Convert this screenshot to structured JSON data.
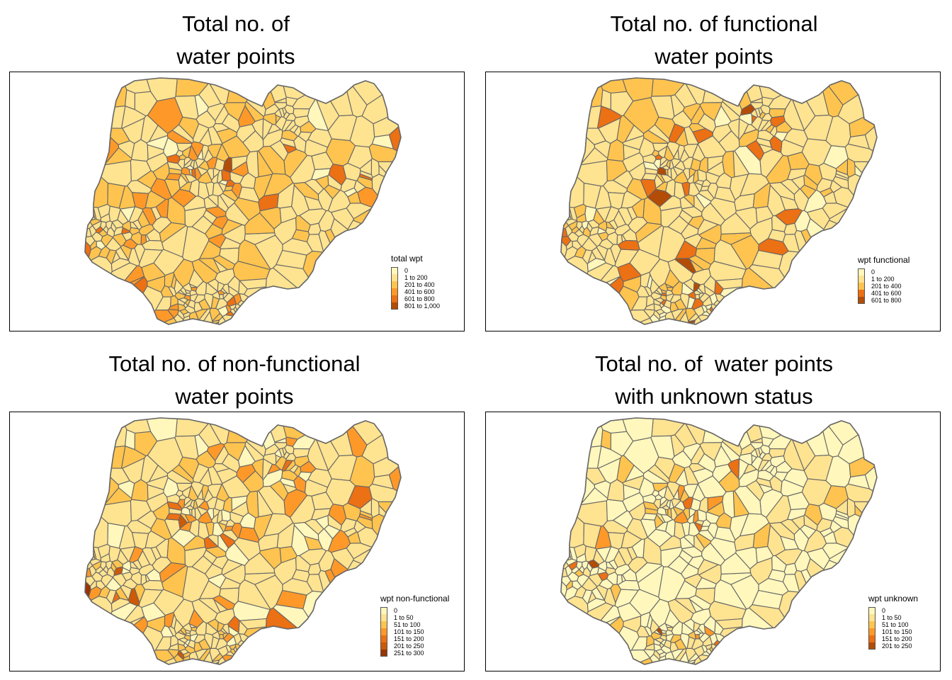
{
  "panels": [
    {
      "title_line1": "Total no. of",
      "title_line2": "water points",
      "legend_title": "total wpt",
      "classes": [
        "0",
        "1 to 200",
        "201 to 400",
        "401 to 600",
        "601 to 800",
        "801 to 1,000"
      ],
      "colors": [
        "#fff7bc",
        "#fee391",
        "#fec44f",
        "#fe9929",
        "#ec7014",
        "#b34c06"
      ],
      "weights": [
        3,
        60,
        25,
        8,
        3,
        1
      ]
    },
    {
      "title_line1": "Total no. of functional",
      "title_line2": "water points",
      "legend_title": "wpt functional",
      "classes": [
        "0",
        "1 to 200",
        "201 to 400",
        "401 to 600",
        "601 to 800"
      ],
      "colors": [
        "#fff7bc",
        "#fee391",
        "#fec44f",
        "#ec7014",
        "#b34c06"
      ],
      "weights": [
        6,
        65,
        22,
        5,
        2
      ]
    },
    {
      "title_line1": "Total no. of non-functional",
      "title_line2": "water points",
      "legend_title": "wpt non-functional",
      "classes": [
        "0",
        "1 to 50",
        "51 to 100",
        "101 to 150",
        "151 to 200",
        "201 to 250",
        "251 to 300"
      ],
      "colors": [
        "#fff7bc",
        "#fee391",
        "#fec44f",
        "#fe9929",
        "#ec7014",
        "#cc5a08",
        "#993404"
      ],
      "weights": [
        12,
        55,
        20,
        8,
        3,
        1.5,
        0.5
      ]
    },
    {
      "title_line1": "Total no. of  water points",
      "title_line2": "with unknown status",
      "legend_title": "wpt unknown",
      "classes": [
        "0",
        "1 to 50",
        "51 to 100",
        "101 to 150",
        "151 to 200",
        "201 to 250"
      ],
      "colors": [
        "#fff7bc",
        "#fee391",
        "#fec44f",
        "#fe9929",
        "#ec7014",
        "#b34c06"
      ],
      "weights": [
        55,
        30,
        9,
        3,
        2,
        1
      ]
    }
  ]
}
